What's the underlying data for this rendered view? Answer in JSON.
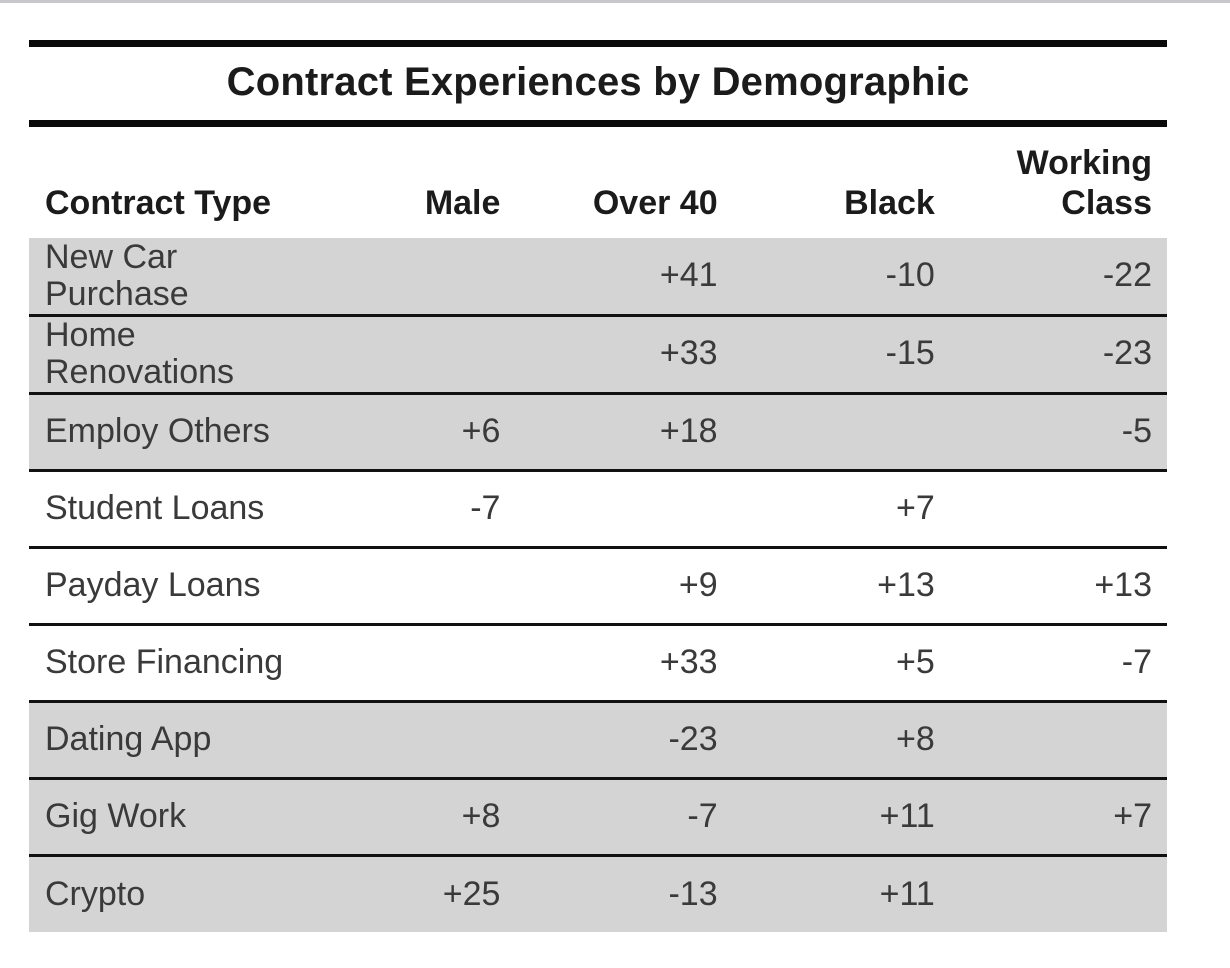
{
  "page": {
    "top_divider_color": "#c8c8ca",
    "background_color": "#ffffff"
  },
  "table": {
    "title": "Contract Experiences by Demographic",
    "columns": {
      "row_header": "Contract Type",
      "demographics": [
        "Male",
        "Over 40",
        "Black",
        "Working Class"
      ]
    },
    "rows": [
      {
        "label": "New Car Purchase",
        "cells": [
          "",
          "+41",
          "-10",
          "-22"
        ],
        "shaded": true
      },
      {
        "label": "Home Renovations",
        "cells": [
          "",
          "+33",
          "-15",
          "-23"
        ],
        "shaded": true
      },
      {
        "label": "Employ Others",
        "cells": [
          "+6",
          "+18",
          "",
          "-5"
        ],
        "shaded": true
      },
      {
        "label": "Student Loans",
        "cells": [
          "-7",
          "",
          "+7",
          ""
        ],
        "shaded": false
      },
      {
        "label": "Payday Loans",
        "cells": [
          "",
          "+9",
          "+13",
          "+13"
        ],
        "shaded": false
      },
      {
        "label": "Store Financing",
        "cells": [
          "",
          "+33",
          "+5",
          "-7"
        ],
        "shaded": false
      },
      {
        "label": "Dating App",
        "cells": [
          "",
          "-23",
          "+8",
          ""
        ],
        "shaded": true
      },
      {
        "label": "Gig Work",
        "cells": [
          "+8",
          "-7",
          "+11",
          "+7"
        ],
        "shaded": true
      },
      {
        "label": "Crypto",
        "cells": [
          "+25",
          "-13",
          "+11",
          ""
        ],
        "shaded": true
      }
    ],
    "colors": {
      "shaded_row": "#d4d4d4",
      "rule_heavy": "#0a0a0a",
      "rule_thin": "#111111",
      "heading_text": "#1b1b1b",
      "cell_text": "#3a3a3a"
    }
  },
  "chart_data": {
    "type": "table",
    "title": "Contract Experiences by Demographic",
    "row_header": "Contract Type",
    "columns": [
      "Male",
      "Over 40",
      "Black",
      "Working Class"
    ],
    "rows": [
      {
        "label": "New Car Purchase",
        "values": [
          null,
          41,
          -10,
          -22
        ]
      },
      {
        "label": "Home Renovations",
        "values": [
          null,
          33,
          -15,
          -23
        ]
      },
      {
        "label": "Employ Others",
        "values": [
          6,
          18,
          null,
          -5
        ]
      },
      {
        "label": "Student Loans",
        "values": [
          -7,
          null,
          7,
          null
        ]
      },
      {
        "label": "Payday Loans",
        "values": [
          null,
          9,
          13,
          13
        ]
      },
      {
        "label": "Store Financing",
        "values": [
          null,
          33,
          5,
          -7
        ]
      },
      {
        "label": "Dating App",
        "values": [
          null,
          -23,
          8,
          null
        ]
      },
      {
        "label": "Gig Work",
        "values": [
          8,
          -7,
          11,
          7
        ]
      },
      {
        "label": "Crypto",
        "values": [
          25,
          -13,
          11,
          null
        ]
      }
    ],
    "layout": {
      "shaded_row_indices": [
        0,
        1,
        2,
        6,
        7,
        8
      ],
      "value_alignment": "right",
      "grid": "horizontal-rules-only"
    }
  }
}
